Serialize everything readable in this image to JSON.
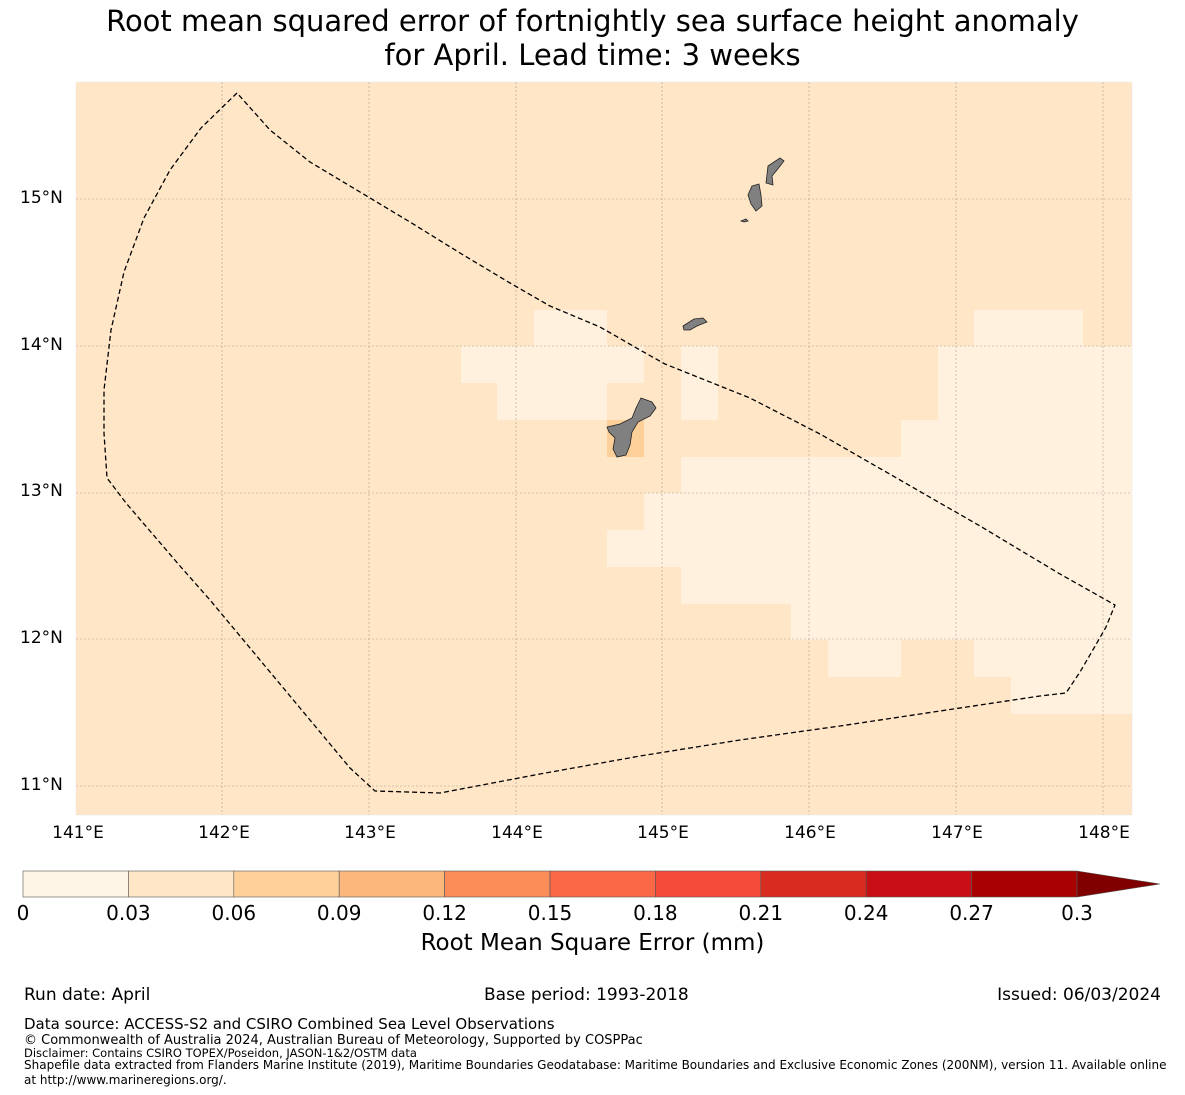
{
  "title": {
    "line1": "Root mean squared error of fortnightly sea surface height anomaly",
    "line2": "for April. Lead time: 3 weeks"
  },
  "map": {
    "ocean_color": "#fee6c7",
    "land_color": "#808080",
    "lat_labels": [
      "15°N",
      "14°N",
      "13°N",
      "12°N",
      "11°N"
    ],
    "lon_labels": [
      "141°E",
      "142°E",
      "143°E",
      "144°E",
      "145°E",
      "146°E",
      "147°E",
      "148°E"
    ],
    "boundary_style": "dashed"
  },
  "chart_data": {
    "type": "heatmap",
    "title": "Root mean squared error of fortnightly sea surface height anomaly for April. Lead time: 3 weeks",
    "x_range": [
      "141°E",
      "148.2°E"
    ],
    "y_range": [
      "10.8°N",
      "15.8°N"
    ],
    "colorbar": {
      "label": "Root Mean Square Error (mm)",
      "ticks": [
        "0",
        "0.03",
        "0.06",
        "0.09",
        "0.12",
        "0.15",
        "0.18",
        "0.21",
        "0.24",
        "0.27",
        "0.3"
      ],
      "colors": [
        "#fff5e6",
        "#fee6c7",
        "#fdd09a",
        "#fcb77d",
        "#fc8d59",
        "#fb6848",
        "#f44b3a",
        "#d72c1f",
        "#c70f15",
        "#a80000"
      ],
      "extend_color": "#800000",
      "extend": "max"
    },
    "values_summary": "Most of the region falls in the 0.03–0.06 bin; patches in 0–0.03; a cell near Guam in 0.06–0.09"
  },
  "colorbar_label": "Root Mean Square Error (mm)",
  "colorbar_ticks": [
    "0",
    "0.03",
    "0.06",
    "0.09",
    "0.12",
    "0.15",
    "0.18",
    "0.21",
    "0.24",
    "0.27",
    "0.3"
  ],
  "footer": {
    "run_date": "Run date: April",
    "base_period": "Base period: 1993-2018",
    "issued": "Issued: 06/03/2024",
    "data_source": "Data source: ACCESS-S2 and CSIRO Combined Sea Level Observations",
    "copyright": "© Commonwealth of Australia 2024, Australian Bureau of Meteorology, Supported by COSPPac",
    "disclaimer": "Disclaimer: Contains CSIRO TOPEX/Poseidon, JASON-1&2/OSTM data",
    "shapefile_line1": "Shapefile data extracted from Flanders Marine Institute (2019), Maritime Boundaries Geodatabase: Maritime Boundaries and Exclusive Economic Zones (200NM), version 11. Available online",
    "shapefile_line2": "at http://www.marineregions.org/."
  }
}
